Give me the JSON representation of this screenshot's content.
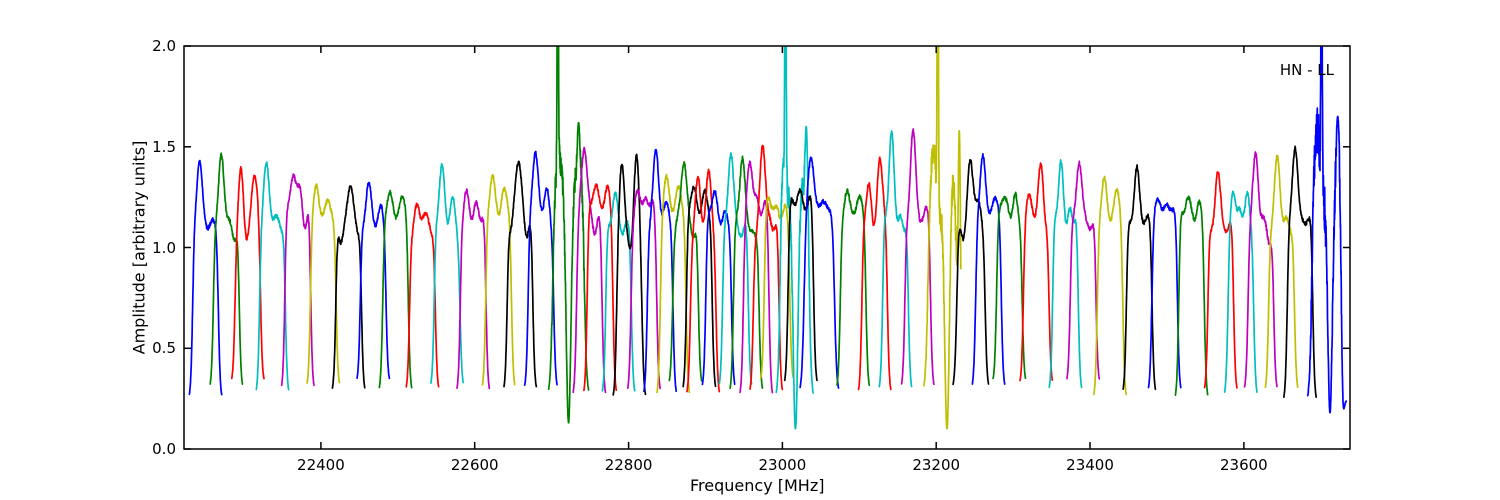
{
  "figure": {
    "corner_label": "HN - LL",
    "background": "#ffffff",
    "frame_color": "#000000"
  },
  "chart_data": {
    "type": "line",
    "title": "",
    "xlabel": "Frequency [MHz]",
    "ylabel": "Amplitude [arbitrary units]",
    "annotation": {
      "text": "HN - LL",
      "position": "top-right-inside"
    },
    "xlim": [
      22222,
      23738
    ],
    "ylim": [
      0.0,
      2.0
    ],
    "x_ticks": [
      22400,
      22600,
      22800,
      23000,
      23200,
      23400,
      23600
    ],
    "x_tick_labels": [
      "22400",
      "22600",
      "22800",
      "23000",
      "23200",
      "23400",
      "23600"
    ],
    "y_ticks": [
      0.0,
      0.5,
      1.0,
      1.5,
      2.0
    ],
    "y_tick_labels": [
      "0.0",
      "0.5",
      "1.0",
      "1.5",
      "2.0"
    ],
    "grid": false,
    "legend_position": "none",
    "description": "Bandpass amplitude vs frequency for station HN, LL polarization: ~56 overlapping spectral-window bandpass humps (plateau ~1.1-1.3, edges falling to ~0.25) colored in the repeating matplotlib cycle b,g,r,c,m,y,k. Narrow spectral-line spikes clipped at the plot top occur near 22708, 23004, 23202 and 23701 MHz, each with an adjacent deep dip to ~0.1; the last blue window (~23708 MHz) is very noisy/jagged.",
    "color_cycle": {
      "b": "#0000ff",
      "g": "#008000",
      "r": "#ff0000",
      "c": "#00bfbf",
      "m": "#bf00bf",
      "y": "#bfbf00",
      "k": "#000000"
    },
    "defaults": {
      "halfwidth_mhz": 21,
      "edge_level": 0.27
    },
    "windows": [
      {
        "center_mhz": 22250,
        "color": "b",
        "plateau": 1.14,
        "peak": 1.42,
        "horn_t": -0.4,
        "horn2_t": 0.45,
        "horn2_peak": 1.1
      },
      {
        "center_mhz": 22277,
        "color": "g",
        "plateau": 1.16,
        "peak": 1.44,
        "horn_t": -0.3,
        "horn2_t": 0.45,
        "horn2_peak": 1.05
      },
      {
        "center_mhz": 22305,
        "color": "r",
        "plateau": 1.04,
        "peak": 1.38,
        "horn_t": -0.45,
        "horn2_t": 0.42,
        "horn2_peak": 1.38
      },
      {
        "center_mhz": 22337,
        "color": "c",
        "plateau": 1.16,
        "peak": 1.4,
        "horn_t": -0.38,
        "horn2_t": 0.5,
        "horn2_peak": 1.1
      },
      {
        "center_mhz": 22370,
        "color": "m",
        "plateau": 1.26,
        "peak": 1.36,
        "horn_t": -0.15,
        "horn2_t": 0.5,
        "horn2_peak": 1.12
      },
      {
        "center_mhz": 22403,
        "color": "y",
        "plateau": 1.15,
        "peak": 1.3,
        "horn_t": -0.4,
        "horn2_t": 0.35,
        "horn2_peak": 1.22
      },
      {
        "center_mhz": 22436,
        "color": "k",
        "plateau": 1.1,
        "peak": 1.33,
        "horn_t": 0.1,
        "horn2_t": -0.5,
        "horn2_peak": 1.05
      },
      {
        "center_mhz": 22468,
        "color": "b",
        "plateau": 1.12,
        "peak": 1.31,
        "horn_t": -0.3,
        "horn2_t": 0.45,
        "horn2_peak": 1.18
      },
      {
        "center_mhz": 22497,
        "color": "g",
        "plateau": 1.17,
        "peak": 1.24,
        "horn_t": -0.3,
        "horn2_t": 0.35,
        "horn2_peak": 1.22
      },
      {
        "center_mhz": 22532,
        "color": "r",
        "plateau": 1.09,
        "peak": 1.19,
        "horn_t": -0.35,
        "horn2_t": 0.1,
        "horn2_peak": 1.17
      },
      {
        "center_mhz": 22564,
        "color": "c",
        "plateau": 1.1,
        "peak": 1.41,
        "horn_t": -0.35,
        "horn2_t": 0.3,
        "horn2_peak": 1.22
      },
      {
        "center_mhz": 22598,
        "color": "m",
        "plateau": 1.14,
        "peak": 1.27,
        "horn_t": -0.45,
        "horn2_t": 0.2,
        "horn2_peak": 1.2
      },
      {
        "center_mhz": 22631,
        "color": "y",
        "plateau": 1.17,
        "peak": 1.35,
        "horn_t": -0.4,
        "horn2_t": 0.4,
        "horn2_peak": 1.28
      },
      {
        "center_mhz": 22659,
        "color": "k",
        "plateau": 1.13,
        "peak": 1.46,
        "horn_t": -0.1,
        "horn2_t": 0.5,
        "horn2_peak": 1.08
      },
      {
        "center_mhz": 22686,
        "color": "b",
        "plateau": 1.12,
        "peak": 1.5,
        "horn_t": -0.35,
        "horn2_t": 0.3,
        "horn2_peak": 1.28
      },
      {
        "center_mhz": 22722,
        "color": "g",
        "type": "spiky",
        "halfwidth_mhz": 26,
        "plateau": 1.24,
        "peak": 1.45,
        "horn_t": -0.5,
        "horn2_t": 0.5,
        "horn2_peak": 1.4,
        "spike_mhz": 22708,
        "spike2_mhz": 22735,
        "spike2_peak": 1.62,
        "dip_mhz": 22722,
        "dip_level": 0.13
      },
      {
        "center_mhz": 22749,
        "color": "m",
        "plateau": 1.16,
        "peak": 1.52,
        "horn_t": -0.3,
        "horn2_t": 0.4,
        "horn2_peak": 1.1
      },
      {
        "center_mhz": 22763,
        "color": "r",
        "plateau": 1.22,
        "peak": 1.3,
        "horn_t": -0.35,
        "horn2_t": 0.45,
        "horn2_peak": 1.27
      },
      {
        "center_mhz": 22787,
        "color": "c",
        "plateau": 1.1,
        "peak": 1.26,
        "horn_t": -0.25,
        "horn2_t": 0.4,
        "horn2_peak": 1.1
      },
      {
        "center_mhz": 22801,
        "color": "k",
        "plateau": 0.97,
        "peak": 1.45,
        "horn_t": -0.45,
        "horn2_t": 0.45,
        "horn2_peak": 1.42
      },
      {
        "center_mhz": 22820,
        "color": "m",
        "plateau": 1.18,
        "peak": 1.28,
        "horn_t": -0.3,
        "horn2_t": 0.3,
        "horn2_peak": 1.24
      },
      {
        "center_mhz": 22841,
        "color": "b",
        "plateau": 1.14,
        "peak": 1.48,
        "horn_t": -0.25,
        "horn2_t": 0.4,
        "horn2_peak": 1.2
      },
      {
        "center_mhz": 22858,
        "color": "y",
        "plateau": 1.2,
        "peak": 1.32,
        "horn_t": -0.4,
        "horn2_t": 0.35,
        "horn2_peak": 1.27
      },
      {
        "center_mhz": 22874,
        "color": "g",
        "plateau": 1.12,
        "peak": 1.45,
        "horn_t": -0.1,
        "horn2_t": 0.5,
        "horn2_peak": 1.08
      },
      {
        "center_mhz": 22892,
        "color": "k",
        "plateau": 1.18,
        "peak": 1.3,
        "horn_t": -0.4,
        "horn2_t": 0.35,
        "horn2_peak": 1.26
      },
      {
        "center_mhz": 22897,
        "color": "r",
        "plateau": 1.08,
        "peak": 1.32,
        "horn_t": -0.3,
        "horn2_t": 0.35,
        "horn2_peak": 1.34
      },
      {
        "center_mhz": 22917,
        "color": "b",
        "plateau": 1.14,
        "peak": 1.28,
        "horn_t": -0.3,
        "horn2_t": 0.5,
        "horn2_peak": 1.16
      },
      {
        "center_mhz": 22939,
        "color": "c",
        "plateau": 1.12,
        "peak": 1.47,
        "horn_t": -0.3,
        "horn2_t": 0.45,
        "horn2_peak": 1.08
      },
      {
        "center_mhz": 22953,
        "color": "g",
        "plateau": 1.13,
        "peak": 1.44,
        "horn_t": -0.25,
        "horn2_t": 0.5,
        "horn2_peak": 1.05
      },
      {
        "center_mhz": 22966,
        "color": "m",
        "plateau": 1.2,
        "peak": 1.42,
        "horn_t": -0.35,
        "horn2_t": 0.3,
        "horn2_peak": 1.2
      },
      {
        "center_mhz": 22979,
        "color": "r",
        "plateau": 1.1,
        "peak": 1.52,
        "horn_t": -0.2,
        "horn2_t": 0.4,
        "horn2_peak": 1.12
      },
      {
        "center_mhz": 22993,
        "color": "y",
        "plateau": 1.17,
        "peak": 1.25,
        "horn_t": -0.45,
        "horn2_t": 0.35,
        "horn2_peak": 1.18
      },
      {
        "center_mhz": 23016,
        "color": "c",
        "type": "spiky",
        "halfwidth_mhz": 24,
        "plateau": 1.18,
        "peak": 1.45,
        "horn_t": -0.6,
        "horn2_t": 0.5,
        "horn2_peak": 1.3,
        "spike_mhz": 23004,
        "spike2_mhz": 23031,
        "spike2_peak": 1.6,
        "dip_mhz": 23017,
        "dip_level": 0.1
      },
      {
        "center_mhz": 23024,
        "color": "k",
        "plateau": 1.21,
        "peak": 1.27,
        "horn_t": -0.2,
        "horn2_t": 0.4,
        "horn2_peak": 1.23
      },
      {
        "center_mhz": 23048,
        "color": "b",
        "halfwidth_mhz": 25,
        "plateau": 1.15,
        "peak": 1.45,
        "horn_t": -0.45,
        "horn2_t": 0.2,
        "horn2_peak": 1.25
      },
      {
        "center_mhz": 23092,
        "color": "g",
        "plateau": 1.14,
        "peak": 1.29,
        "horn_t": -0.4,
        "horn2_t": 0.35,
        "horn2_peak": 1.26
      },
      {
        "center_mhz": 23120,
        "color": "r",
        "plateau": 1.09,
        "peak": 1.45,
        "horn_t": 0.35,
        "horn2_t": -0.4,
        "horn2_peak": 1.3
      },
      {
        "center_mhz": 23147,
        "color": "c",
        "plateau": 1.14,
        "peak": 1.55,
        "horn_t": -0.25,
        "horn2_t": 0.45,
        "horn2_peak": 1.12
      },
      {
        "center_mhz": 23176,
        "color": "m",
        "plateau": 1.14,
        "peak": 1.58,
        "horn_t": -0.3,
        "horn2_t": 0.5,
        "horn2_peak": 1.18
      },
      {
        "center_mhz": 23208,
        "color": "y",
        "type": "spiky",
        "halfwidth_mhz": 24,
        "plateau": 1.18,
        "peak": 1.45,
        "horn_t": -0.5,
        "horn2_t": 0.5,
        "horn2_peak": 1.35,
        "spike_mhz": 23202,
        "spike2_mhz": 23230,
        "spike2_peak": 1.58,
        "dip_mhz": 23214,
        "dip_level": 0.1
      },
      {
        "center_mhz": 23245,
        "color": "k",
        "halfwidth_mhz": 23,
        "plateau": 1.19,
        "peak": 1.42,
        "horn_t": 0.0,
        "horn2_t": -0.5,
        "horn2_peak": 1.05
      },
      {
        "center_mhz": 23268,
        "color": "b",
        "plateau": 1.19,
        "peak": 1.43,
        "horn_t": -0.35,
        "horn2_t": 0.4,
        "horn2_peak": 1.22
      },
      {
        "center_mhz": 23295,
        "color": "g",
        "plateau": 1.14,
        "peak": 1.27,
        "horn_t": -0.35,
        "horn2_t": 0.35,
        "horn2_peak": 1.24
      },
      {
        "center_mhz": 23330,
        "color": "r",
        "plateau": 1.09,
        "peak": 1.42,
        "horn_t": 0.3,
        "horn2_t": -0.4,
        "horn2_peak": 1.28
      },
      {
        "center_mhz": 23368,
        "color": "c",
        "plateau": 1.13,
        "peak": 1.4,
        "horn_t": -0.3,
        "horn2_t": 0.45,
        "horn2_peak": 1.17
      },
      {
        "center_mhz": 23391,
        "color": "m",
        "plateau": 1.17,
        "peak": 1.4,
        "horn_t": -0.25,
        "horn2_t": 0.5,
        "horn2_peak": 1.1
      },
      {
        "center_mhz": 23426,
        "color": "y",
        "plateau": 1.14,
        "peak": 1.32,
        "horn_t": -0.35,
        "horn2_t": 0.4,
        "horn2_peak": 1.26
      },
      {
        "center_mhz": 23464,
        "color": "k",
        "plateau": 1.13,
        "peak": 1.38,
        "horn_t": -0.15,
        "horn2_t": 0.45,
        "horn2_peak": 1.14
      },
      {
        "center_mhz": 23497,
        "color": "b",
        "plateau": 1.15,
        "peak": 1.25,
        "horn_t": -0.35,
        "horn2_t": 0.3,
        "horn2_peak": 1.22
      },
      {
        "center_mhz": 23532,
        "color": "g",
        "plateau": 1.15,
        "peak": 1.25,
        "horn_t": -0.3,
        "horn2_t": 0.4,
        "horn2_peak": 1.2
      },
      {
        "center_mhz": 23570,
        "color": "r",
        "plateau": 1.11,
        "peak": 1.36,
        "horn_t": -0.2,
        "horn2_t": -0.5,
        "horn2_peak": 1.1
      },
      {
        "center_mhz": 23596,
        "color": "c",
        "plateau": 1.13,
        "peak": 1.27,
        "horn_t": -0.4,
        "horn2_t": 0.35,
        "horn2_peak": 1.24
      },
      {
        "center_mhz": 23622,
        "color": "m",
        "plateau": 1.13,
        "peak": 1.46,
        "horn_t": -0.3,
        "horn2_t": 0.5,
        "horn2_peak": 1.05
      },
      {
        "center_mhz": 23649,
        "color": "y",
        "plateau": 1.14,
        "peak": 1.43,
        "horn_t": -0.25,
        "horn2_t": 0.45,
        "horn2_peak": 1.1
      },
      {
        "center_mhz": 23673,
        "color": "k",
        "plateau": 1.11,
        "peak": 1.52,
        "horn_t": -0.3,
        "horn2_t": 0.45,
        "horn2_peak": 1.15
      },
      {
        "center_mhz": 23708,
        "color": "b",
        "type": "noisy",
        "halfwidth_mhz": 25,
        "plateau": 1.28,
        "peak": 1.55,
        "horn_t": -0.5,
        "horn2_t": 0.6,
        "horn2_peak": 1.45,
        "spike_mhz": 23701,
        "spike2_mhz": 23722,
        "spike2_peak": 1.65,
        "dip_mhz": 23712,
        "dip2_mhz": 23730,
        "dip_level": 0.18
      }
    ]
  }
}
